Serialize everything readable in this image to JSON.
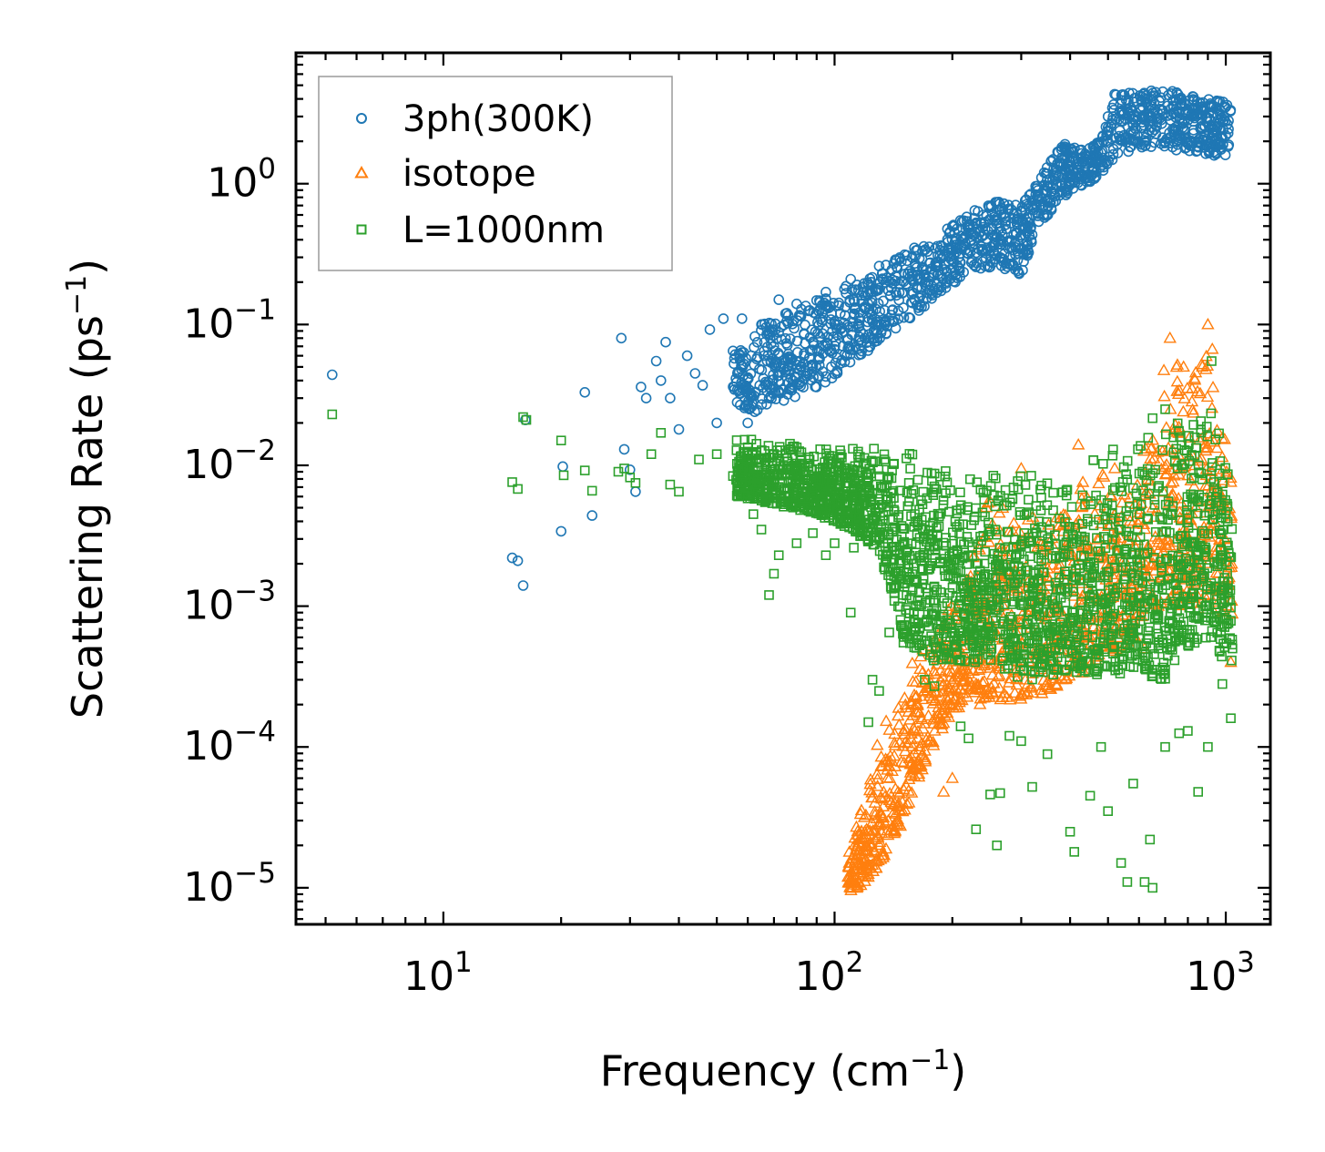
{
  "chart_data": {
    "type": "scatter",
    "xscale": "log",
    "yscale": "log",
    "xlabel": {
      "text": "Frequency (cm",
      "sup": "−1",
      "close": ")"
    },
    "ylabel": {
      "text": "Scattering Rate (ps",
      "sup": "−1",
      "close": ")"
    },
    "xlim": [
      4.2,
      1300
    ],
    "ylim": [
      5.5e-06,
      8.5
    ],
    "xticks": [
      {
        "value": 10,
        "base": "10",
        "exp": "1"
      },
      {
        "value": 100,
        "base": "10",
        "exp": "2"
      },
      {
        "value": 1000,
        "base": "10",
        "exp": "3"
      }
    ],
    "yticks": [
      {
        "value": 1e-05,
        "base": "10",
        "exp": "−5"
      },
      {
        "value": 0.0001,
        "base": "10",
        "exp": "−4"
      },
      {
        "value": 0.001,
        "base": "10",
        "exp": "−3"
      },
      {
        "value": 0.01,
        "base": "10",
        "exp": "−2"
      },
      {
        "value": 0.1,
        "base": "10",
        "exp": "−1"
      },
      {
        "value": 1,
        "base": "10",
        "exp": "0"
      }
    ],
    "legend_position": "top-left",
    "series": [
      {
        "name": "3ph(300K)",
        "marker": "circle",
        "color": "#1f77b4",
        "points": [
          [
            5.2,
            0.044
          ],
          [
            15,
            0.0022
          ],
          [
            15.5,
            0.0021
          ],
          [
            16,
            0.0014
          ],
          [
            16.2,
            0.021
          ],
          [
            20,
            0.0034
          ],
          [
            20.2,
            0.0098
          ],
          [
            23,
            0.033
          ],
          [
            24,
            0.0044
          ],
          [
            28.5,
            0.08
          ],
          [
            29,
            0.013
          ],
          [
            30,
            0.0093
          ],
          [
            31,
            0.0065
          ],
          [
            32,
            0.036
          ],
          [
            33,
            0.03
          ],
          [
            35,
            0.055
          ],
          [
            36,
            0.04
          ],
          [
            37,
            0.075
          ],
          [
            38,
            0.03
          ],
          [
            40,
            0.018
          ],
          [
            42,
            0.06
          ],
          [
            44,
            0.045
          ],
          [
            46,
            0.037
          ],
          [
            48,
            0.092
          ],
          [
            50,
            0.02
          ],
          [
            52,
            0.11
          ],
          [
            55,
            0.065
          ],
          [
            58,
            0.11
          ],
          [
            60,
            0.02
          ],
          [
            65,
            0.1
          ],
          [
            68,
            0.03
          ],
          [
            72,
            0.15
          ],
          [
            80,
            0.14
          ],
          [
            95,
            0.17
          ],
          [
            110,
            0.21
          ],
          [
            130,
            0.26
          ],
          [
            160,
            0.35
          ],
          [
            200,
            0.5
          ],
          [
            240,
            0.6
          ],
          [
            260,
            0.55
          ],
          [
            300,
            0.35
          ],
          [
            330,
            0.8
          ],
          [
            380,
            1.4
          ],
          [
            420,
            1.5
          ],
          [
            500,
            3.0
          ],
          [
            560,
            3.4
          ],
          [
            650,
            2.8
          ],
          [
            750,
            4.4
          ],
          [
            850,
            3.5
          ],
          [
            1000,
            2.2
          ]
        ],
        "band": {
          "x": [
            55,
            65,
            80,
            100,
            130,
            170,
            220,
            260,
            300,
            330,
            380,
            430,
            480,
            520,
            600,
            700,
            850,
            1000,
            1030
          ],
          "lower": [
            0.02,
            0.025,
            0.03,
            0.042,
            0.075,
            0.13,
            0.24,
            0.26,
            0.22,
            0.48,
            0.8,
            0.95,
            1.15,
            1.55,
            1.8,
            1.8,
            1.6,
            1.55,
            1.55
          ],
          "upper": [
            0.06,
            0.1,
            0.13,
            0.17,
            0.25,
            0.38,
            0.62,
            0.75,
            0.7,
            1.0,
            1.95,
            1.75,
            2.0,
            4.4,
            4.6,
            4.7,
            4.1,
            3.8,
            3.8
          ]
        }
      },
      {
        "name": "isotope",
        "marker": "triangle",
        "color": "#ff7f0e",
        "points": [
          [
            112,
            1.05e-05
          ],
          [
            120,
            2.4e-05
          ],
          [
            150,
            5e-05
          ],
          [
            160,
            9e-05
          ],
          [
            190,
            4.8e-05
          ],
          [
            200,
            6e-05
          ],
          [
            230,
            0.0014
          ],
          [
            250,
            0.0055
          ],
          [
            300,
            0.0095
          ],
          [
            420,
            0.014
          ],
          [
            520,
            0.0095
          ],
          [
            620,
            0.0005
          ],
          [
            650,
            0.005
          ],
          [
            720,
            0.08
          ],
          [
            780,
            0.05
          ],
          [
            820,
            0.035
          ],
          [
            900,
            0.1
          ],
          [
            1020,
            0.0016
          ],
          [
            1030,
            0.0004
          ]
        ],
        "band": {
          "x": [
            108,
            115,
            130,
            150,
            175,
            200,
            220,
            240,
            260,
            300,
            350,
            400,
            450,
            500,
            550,
            600,
            650,
            700,
            800,
            900,
            1000,
            1040
          ],
          "lower": [
            9e-06,
            1e-05,
            1.4e-05,
            3e-05,
            9e-05,
            0.00018,
            0.0002,
            0.0002,
            0.00022,
            0.0002,
            0.00025,
            0.0003,
            0.00035,
            0.00045,
            0.0005,
            0.0006,
            0.0009,
            0.001,
            0.001,
            0.0009,
            0.0008,
            0.0008
          ],
          "upper": [
            2e-05,
            3e-05,
            0.00012,
            0.00035,
            0.0007,
            0.0011,
            0.0018,
            0.011,
            0.005,
            0.0075,
            0.0065,
            0.0065,
            0.009,
            0.01,
            0.011,
            0.016,
            0.022,
            0.09,
            0.08,
            0.12,
            0.025,
            0.01
          ]
        }
      },
      {
        "name": "L=1000nm",
        "marker": "square",
        "color": "#2ca02c",
        "points": [
          [
            5.2,
            0.023
          ],
          [
            15,
            0.0076
          ],
          [
            15.5,
            0.0068
          ],
          [
            16,
            0.022
          ],
          [
            16.3,
            0.021
          ],
          [
            20,
            0.015
          ],
          [
            20.3,
            0.0085
          ],
          [
            23,
            0.0092
          ],
          [
            24,
            0.0066
          ],
          [
            28,
            0.009
          ],
          [
            29,
            0.0095
          ],
          [
            30,
            0.0082
          ],
          [
            31,
            0.0075
          ],
          [
            34,
            0.012
          ],
          [
            36,
            0.017
          ],
          [
            38,
            0.0073
          ],
          [
            40,
            0.0065
          ],
          [
            45,
            0.011
          ],
          [
            50,
            0.012
          ],
          [
            55,
            0.0084
          ],
          [
            58,
            0.0075
          ],
          [
            62,
            0.0045
          ],
          [
            65,
            0.0035
          ],
          [
            68,
            0.0012
          ],
          [
            70,
            0.0017
          ],
          [
            72,
            0.0023
          ],
          [
            80,
            0.0028
          ],
          [
            88,
            0.0033
          ],
          [
            95,
            0.0023
          ],
          [
            100,
            0.0028
          ],
          [
            110,
            0.0009
          ],
          [
            112,
            0.0026
          ],
          [
            122,
            0.00015
          ],
          [
            125,
            0.0003
          ],
          [
            130,
            0.00025
          ],
          [
            138,
            0.00065
          ],
          [
            150,
            0.00055
          ],
          [
            170,
            0.0003
          ],
          [
            180,
            0.00027
          ],
          [
            210,
            0.00014
          ],
          [
            220,
            0.000115
          ],
          [
            230,
            2.6e-05
          ],
          [
            250,
            4.6e-05
          ],
          [
            260,
            2e-05
          ],
          [
            265,
            4.7e-05
          ],
          [
            280,
            0.00012
          ],
          [
            300,
            0.00011
          ],
          [
            320,
            5.2e-05
          ],
          [
            350,
            8.9e-05
          ],
          [
            400,
            2.5e-05
          ],
          [
            410,
            1.8e-05
          ],
          [
            450,
            4.5e-05
          ],
          [
            480,
            0.0001
          ],
          [
            500,
            3.5e-05
          ],
          [
            540,
            1.5e-05
          ],
          [
            560,
            1.1e-05
          ],
          [
            580,
            5.5e-05
          ],
          [
            620,
            1.1e-05
          ],
          [
            640,
            2.2e-05
          ],
          [
            650,
            1e-05
          ],
          [
            700,
            0.0001
          ],
          [
            760,
            0.000125
          ],
          [
            800,
            0.00013
          ],
          [
            850,
            4.8e-05
          ],
          [
            900,
            0.0001
          ],
          [
            950,
            0.0009
          ],
          [
            980,
            0.00028
          ],
          [
            1000,
            0.0045
          ],
          [
            1030,
            0.00016
          ],
          [
            1040,
            0.0005
          ],
          [
            920,
            0.055
          ],
          [
            700,
            0.025
          ]
        ],
        "band": {
          "x": [
            56,
            65,
            75,
            90,
            110,
            130,
            150,
            170,
            200,
            250,
            300,
            350,
            400,
            450,
            500,
            550,
            600,
            650,
            700,
            800,
            900,
            1000,
            1040
          ],
          "lower": [
            0.006,
            0.0055,
            0.005,
            0.0045,
            0.0035,
            0.0025,
            0.0006,
            0.0004,
            0.0004,
            0.0004,
            0.0003,
            0.0003,
            0.00035,
            0.0003,
            0.00035,
            0.0003,
            0.0004,
            0.0003,
            0.0003,
            0.0005,
            0.0006,
            0.0004,
            0.0004
          ],
          "upper": [
            0.017,
            0.016,
            0.015,
            0.014,
            0.014,
            0.014,
            0.013,
            0.012,
            0.011,
            0.01,
            0.01,
            0.009,
            0.009,
            0.012,
            0.013,
            0.015,
            0.018,
            0.022,
            0.024,
            0.026,
            0.028,
            0.02,
            0.01
          ]
        }
      }
    ]
  }
}
